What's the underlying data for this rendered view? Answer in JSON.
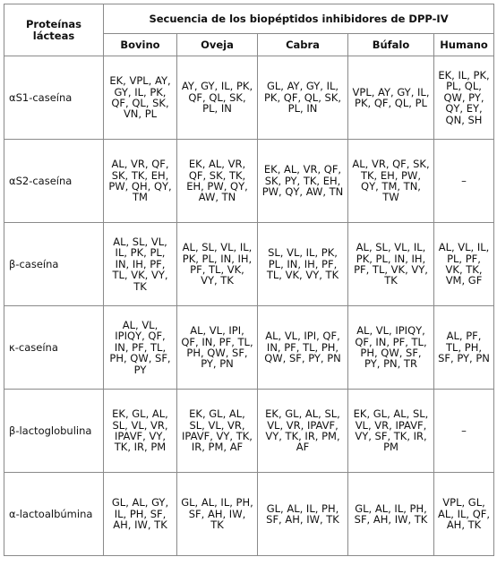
{
  "table": {
    "corner_header": "Proteínas lácteas",
    "group_header": "Secuencia de los biopéptidos inhibidores de DPP-IV",
    "species": [
      "Bovino",
      "Oveja",
      "Cabra",
      "Búfalo",
      "Humano"
    ],
    "rows": [
      {
        "protein": "αS1-caseína",
        "cells": [
          "EK, VPL, AY, GY, IL, PK, QF, QL, SK, VN, PL",
          "AY, GY, IL, PK, QF, QL, SK, PL, IN",
          "GL, AY, GY, IL, PK, QF, QL, SK, PL, IN",
          "VPL, AY, GY, IL, PK, QF, QL, PL",
          "EK, IL, PK, PL, QL, QW, PY, QY, EY, QN, SH"
        ]
      },
      {
        "protein": "αS2-caseína",
        "cells": [
          "AL, VR, QF, SK, TK, EH, PW, QH, QY, TM",
          "EK, AL, VR, QF, SK, TK, EH, PW, QY, AW, TN",
          "EK, AL, VR, QF, SK, PY, TK, EH, PW, QY, AW, TN",
          "AL, VR, QF, SK, TK, EH, PW, QY, TM, TN, TW",
          "–"
        ]
      },
      {
        "protein": "β-caseína",
        "cells": [
          "AL, SL, VL, IL, PK, PL, IN, IH, PF, TL, VK, VY, TK",
          "AL, SL, VL, IL, PK, PL, IN, IH, PF, TL, VK, VY, TK",
          "SL, VL, IL, PK, PL, IN, IH, PF, TL, VK, VY, TK",
          "AL, SL, VL, IL, PK, PL, IN, IH, PF, TL, VK, VY, TK",
          "AL, VL, IL, PL, PF, VK, TK, VM, GF"
        ]
      },
      {
        "protein": "κ-caseína",
        "cells": [
          "AL, VL, IPIQY, QF, IN, PF, TL, PH, QW, SF, PY",
          "AL, VL, IPI, QF, IN, PF, TL, PH, QW, SF, PY, PN",
          "AL, VL, IPI, QF, IN, PF, TL, PH, QW, SF, PY, PN",
          "AL, VL, IPIQY, QF, IN, PF, TL, PH, QW, SF, PY, PN, TR",
          "AL, PF, TL, PH, SF, PY, PN"
        ]
      },
      {
        "protein": "β-lactoglobulina",
        "cells": [
          "EK, GL, AL, SL, VL, VR, IPAVF, VY, TK, IR, PM",
          "EK, GL, AL, SL, VL, VR, IPAVF, VY, TK, IR, PM, AF",
          "EK, GL, AL, SL, VL, VR, IPAVF, VY, TK, IR, PM, AF",
          "EK, GL, AL, SL, VL, VR, IPAVF, VY, SF, TK, IR, PM",
          "–"
        ]
      },
      {
        "protein": "α-lactoalbúmina",
        "cells": [
          "GL, AL, GY, IL, PH, SF, AH, IW, TK",
          "GL, AL, IL, PH, SF, AH, IW, TK",
          "GL, AL, IL, PH, SF, AH, IW, TK",
          "GL, AL, IL, PH, SF, AH, IW, TK",
          "VPL, GL, AL, IL, QF, AH, TK"
        ]
      }
    ]
  }
}
